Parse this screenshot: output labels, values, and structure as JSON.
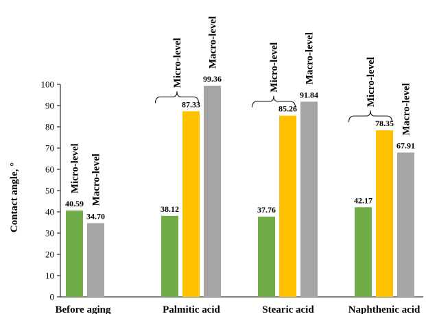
{
  "chart_data": {
    "type": "bar",
    "ylabel": "Contact angle, °",
    "ylim": [
      0,
      100
    ],
    "yticks": [
      0,
      10,
      20,
      30,
      40,
      50,
      60,
      70,
      80,
      90,
      100
    ],
    "grid": false,
    "colors": {
      "green": "#70ad47",
      "yellow": "#ffc000",
      "gray": "#a5a5a5"
    },
    "categories": [
      "Before aging",
      "Palmitic acid",
      "Stearic acid",
      "Naphthenic acid"
    ],
    "groups": [
      {
        "category": "Before aging",
        "bars": [
          {
            "value": 40.59,
            "label": "40.59",
            "color": "green"
          },
          {
            "value": 34.7,
            "label": "34.70",
            "color": "gray"
          }
        ],
        "annotations": [
          {
            "text": "Micro-level",
            "bar": 0,
            "bracket": false
          },
          {
            "text": "Macro-level",
            "bar": 1,
            "bracket": false
          }
        ]
      },
      {
        "category": "Palmitic acid",
        "bars": [
          {
            "value": 38.12,
            "label": "38.12",
            "color": "green"
          },
          {
            "value": 87.33,
            "label": "87.33",
            "color": "yellow"
          },
          {
            "value": 99.36,
            "label": "99.36",
            "color": "gray"
          }
        ],
        "annotations": [
          {
            "text": "Micro-level",
            "bar": 1,
            "bracket": true
          },
          {
            "text": "Macro-level",
            "bar": 2,
            "bracket": false
          }
        ]
      },
      {
        "category": "Stearic acid",
        "bars": [
          {
            "value": 37.76,
            "label": "37.76",
            "color": "green"
          },
          {
            "value": 85.26,
            "label": "85.26",
            "color": "yellow"
          },
          {
            "value": 91.84,
            "label": "91.84",
            "color": "gray"
          }
        ],
        "annotations": [
          {
            "text": "Micro-level",
            "bar": 1,
            "bracket": true
          },
          {
            "text": "Macro-level",
            "bar": 2,
            "bracket": false
          }
        ]
      },
      {
        "category": "Naphthenic acid",
        "bars": [
          {
            "value": 42.17,
            "label": "42.17",
            "color": "green"
          },
          {
            "value": 78.35,
            "label": "78.35",
            "color": "yellow"
          },
          {
            "value": 67.91,
            "label": "67.91",
            "color": "gray"
          }
        ],
        "annotations": [
          {
            "text": "Micro-level",
            "bar": 1,
            "bracket": true
          },
          {
            "text": "Macro-level",
            "bar": 2,
            "bracket": false
          }
        ]
      }
    ]
  }
}
